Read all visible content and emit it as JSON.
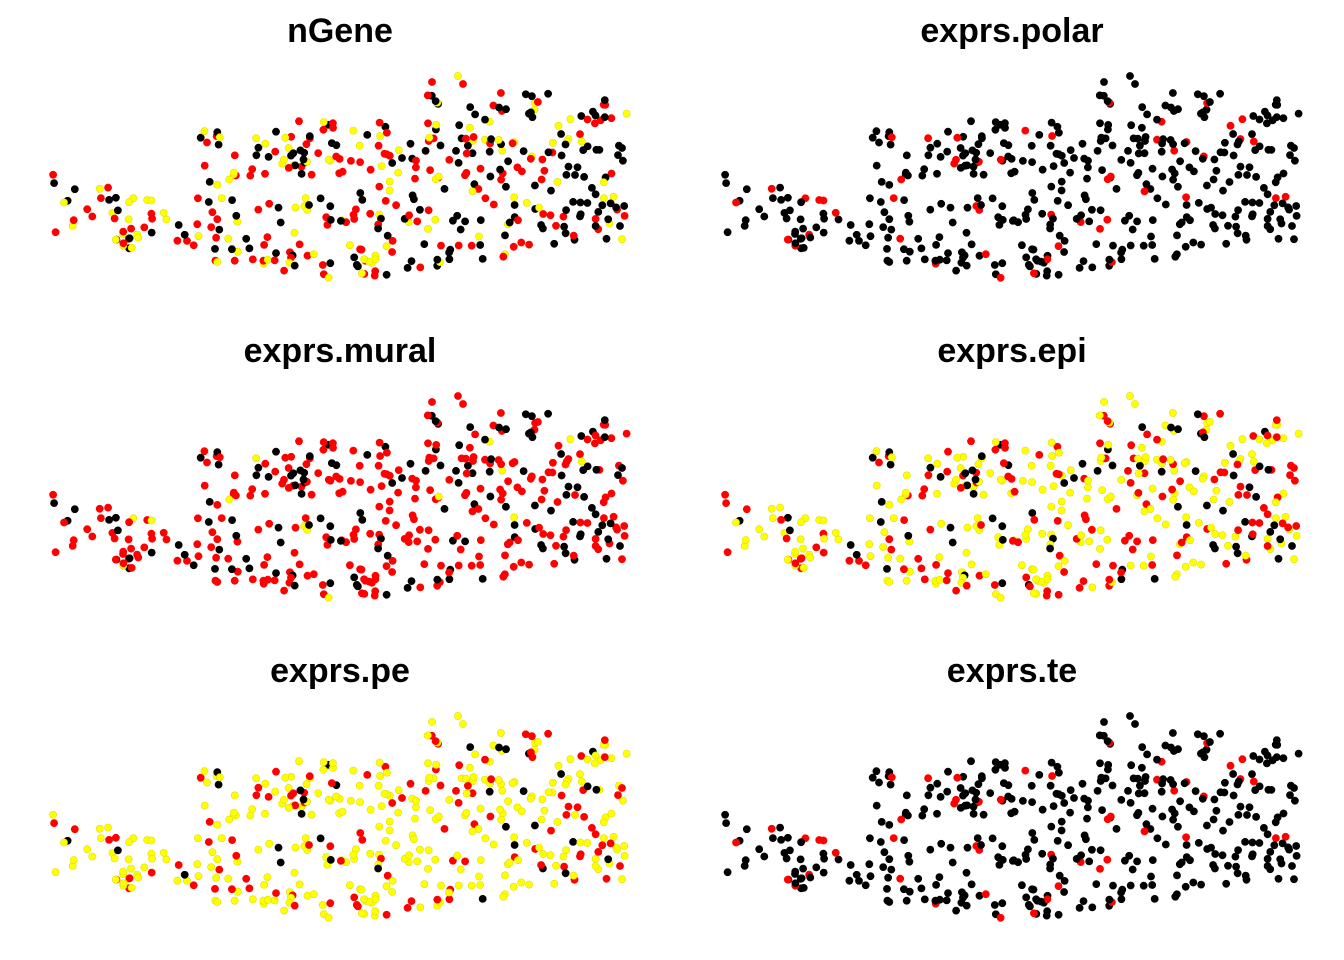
{
  "chart_data": [
    {
      "type": "scatter",
      "title": "nGene",
      "palette": [
        "#000000",
        "#ff0000",
        "#ffff00"
      ],
      "group_weights": {
        "black": 0.32,
        "red": 0.4,
        "yellow": 0.28
      },
      "xlabel": "",
      "ylabel": "",
      "axes": "none",
      "grid": false
    },
    {
      "type": "scatter",
      "title": "exprs.polar",
      "palette": [
        "#000000",
        "#ff0000",
        "#ffff00"
      ],
      "group_weights": {
        "black": 0.85,
        "red": 0.15,
        "yellow": 0.0
      },
      "xlabel": "",
      "ylabel": "",
      "axes": "none",
      "grid": false
    },
    {
      "type": "scatter",
      "title": "exprs.mural",
      "palette": [
        "#000000",
        "#ff0000",
        "#ffff00"
      ],
      "group_weights": {
        "black": 0.3,
        "red": 0.66,
        "yellow": 0.04
      },
      "xlabel": "",
      "ylabel": "",
      "axes": "none",
      "grid": false
    },
    {
      "type": "scatter",
      "title": "exprs.epi",
      "palette": [
        "#000000",
        "#ff0000",
        "#ffff00"
      ],
      "group_weights": {
        "black": 0.14,
        "red": 0.36,
        "yellow": 0.5
      },
      "xlabel": "",
      "ylabel": "",
      "axes": "none",
      "grid": false
    },
    {
      "type": "scatter",
      "title": "exprs.pe",
      "palette": [
        "#000000",
        "#ff0000",
        "#ffff00"
      ],
      "group_weights": {
        "black": 0.05,
        "red": 0.25,
        "yellow": 0.7
      },
      "xlabel": "",
      "ylabel": "",
      "axes": "none",
      "grid": false
    },
    {
      "type": "scatter",
      "title": "exprs.te",
      "palette": [
        "#000000",
        "#ff0000",
        "#ffff00"
      ],
      "group_weights": {
        "black": 0.85,
        "red": 0.15,
        "yellow": 0.0
      },
      "xlabel": "",
      "ylabel": "",
      "axes": "none",
      "grid": false
    }
  ]
}
